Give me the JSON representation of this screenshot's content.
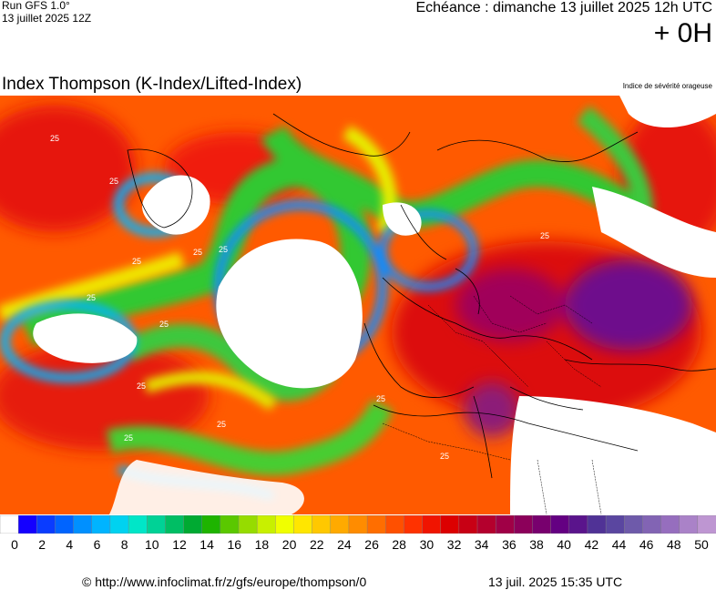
{
  "header": {
    "run_label": "Run GFS 1.0°",
    "run_date": "13 juillet 2025 12Z",
    "echeance": "Echéance : dimanche 13 juillet 2025 12h UTC",
    "lead_time": "+ 0H"
  },
  "map": {
    "title": "Index Thompson (K-Index/Lifted-Index)",
    "legend_caption": "Indice de sévérité orageuse",
    "contour_labels": [
      "25",
      "25",
      "25",
      "25",
      "25",
      "25",
      "25",
      "25",
      "25",
      "25",
      "25",
      "25",
      "25",
      "25",
      "25"
    ]
  },
  "colorbar": {
    "ticks": [
      "0",
      "2",
      "4",
      "6",
      "8",
      "10",
      "12",
      "14",
      "16",
      "18",
      "20",
      "22",
      "24",
      "26",
      "28",
      "30",
      "32",
      "34",
      "36",
      "38",
      "40",
      "42",
      "44",
      "46",
      "48",
      "50"
    ],
    "colors": [
      "#ffffff",
      "#1400ff",
      "#0a3cff",
      "#0064ff",
      "#0090ff",
      "#00b4ff",
      "#00d2f0",
      "#00e6c8",
      "#00d296",
      "#00be64",
      "#00aa32",
      "#1eb400",
      "#5ac800",
      "#96dc00",
      "#c8f000",
      "#f0ff00",
      "#ffe600",
      "#ffc800",
      "#ffaa00",
      "#ff8c00",
      "#ff6e00",
      "#ff5000",
      "#ff3200",
      "#f01400",
      "#dc0000",
      "#c80014",
      "#b4002d",
      "#a00046",
      "#8c005a",
      "#78006e",
      "#640082",
      "#5a148c",
      "#503296",
      "#5a46a0",
      "#6e5aaa",
      "#8264b4",
      "#966ebe",
      "#aa82c8",
      "#be96d2"
    ]
  },
  "footer": {
    "url": "© http://www.infoclimat.fr/z/gfs/europe/thompson/0",
    "generated": "13 juil. 2025 15:35 UTC"
  }
}
